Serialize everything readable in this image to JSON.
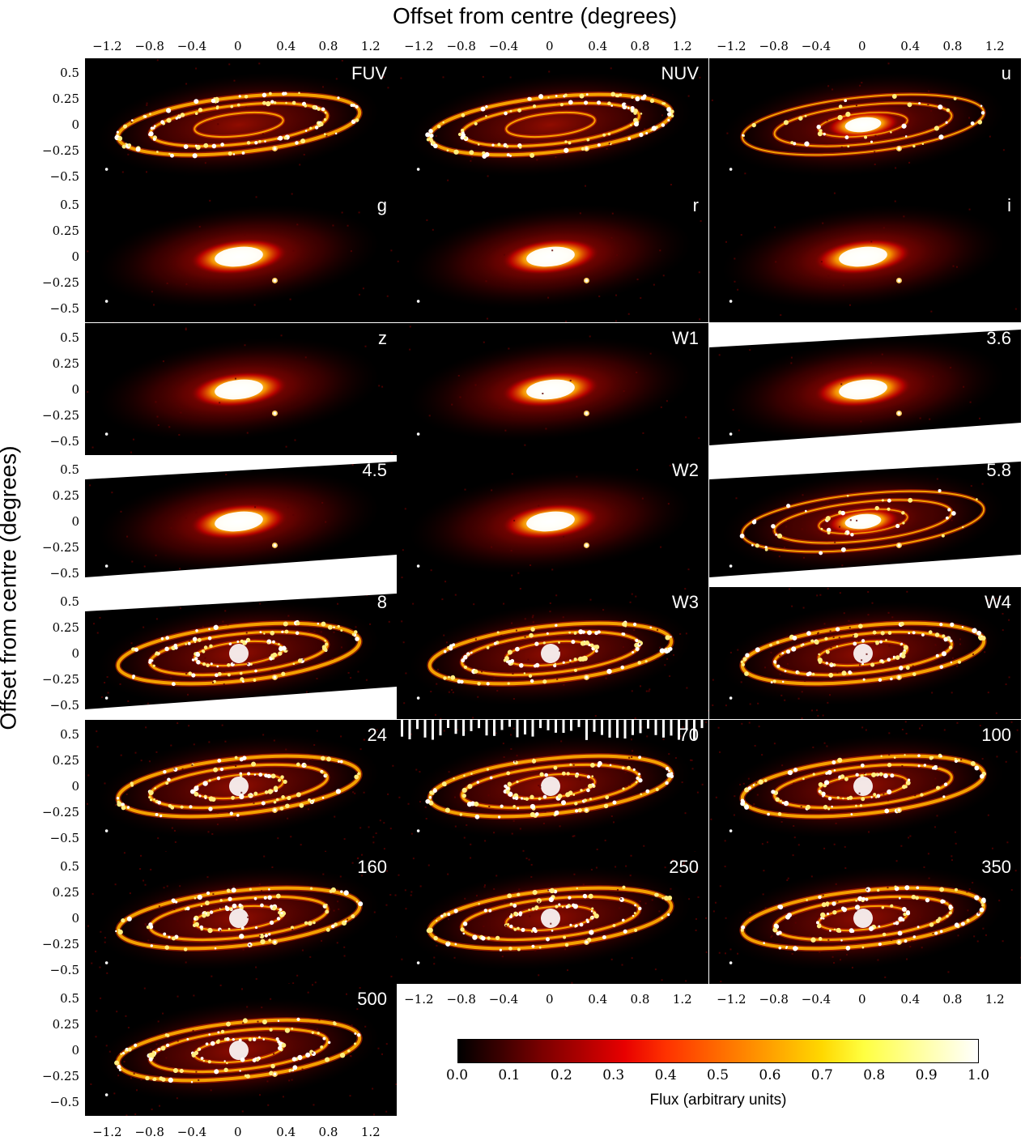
{
  "figure": {
    "x_axis_title": "Offset from centre (degrees)",
    "y_axis_title": "Offset from centre (degrees)",
    "x_tick_labels": [
      "−1.2",
      "−0.8",
      "−0.4",
      "0",
      "0.4",
      "0.8",
      "1.2"
    ],
    "y_tick_labels": [
      "0.5",
      "0.25",
      "0",
      "−0.25",
      "−0.5"
    ],
    "panels": [
      {
        "band": "FUV",
        "emission": "ring"
      },
      {
        "band": "NUV",
        "emission": "ring"
      },
      {
        "band": "u",
        "emission": "mixed"
      },
      {
        "band": "g",
        "emission": "bulge"
      },
      {
        "band": "r",
        "emission": "bulge"
      },
      {
        "band": "i",
        "emission": "bulge"
      },
      {
        "band": "z",
        "emission": "bulge"
      },
      {
        "band": "W1",
        "emission": "bulge"
      },
      {
        "band": "3.6",
        "emission": "bulge"
      },
      {
        "band": "4.5",
        "emission": "bulge"
      },
      {
        "band": "W2",
        "emission": "bulge"
      },
      {
        "band": "5.8",
        "emission": "mixed"
      },
      {
        "band": "8",
        "emission": "dust"
      },
      {
        "band": "W3",
        "emission": "dust"
      },
      {
        "band": "W4",
        "emission": "dust"
      },
      {
        "band": "24",
        "emission": "dust"
      },
      {
        "band": "70",
        "emission": "dust"
      },
      {
        "band": "100",
        "emission": "dust"
      },
      {
        "band": "160",
        "emission": "dust"
      },
      {
        "band": "250",
        "emission": "dust"
      },
      {
        "band": "350",
        "emission": "dust"
      },
      {
        "band": "500",
        "emission": "dust"
      }
    ]
  },
  "colorbar": {
    "label": "Flux (arbitrary units)",
    "ticks": [
      "0.0",
      "0.1",
      "0.2",
      "0.3",
      "0.4",
      "0.5",
      "0.6",
      "0.7",
      "0.8",
      "0.9",
      "1.0"
    ],
    "colormap": "hot"
  },
  "chart_data": {
    "type": "heatmap",
    "title": "",
    "xlabel": "Offset from centre (degrees)",
    "ylabel": "Offset from centre (degrees)",
    "xlim": [
      -1.45,
      1.45
    ],
    "ylim": [
      -0.6,
      0.6
    ],
    "xticks": [
      -1.2,
      -0.8,
      -0.4,
      0,
      0.4,
      0.8,
      1.2
    ],
    "yticks": [
      0.5,
      0.25,
      0,
      -0.25,
      -0.5
    ],
    "color_range": [
      0.0,
      1.0
    ],
    "color_label": "Flux (arbitrary units)",
    "bands": [
      "FUV",
      "NUV",
      "u",
      "g",
      "r",
      "i",
      "z",
      "W1",
      "3.6",
      "4.5",
      "W2",
      "5.8",
      "8",
      "W3",
      "W4",
      "24",
      "70",
      "100",
      "160",
      "250",
      "350",
      "500"
    ]
  }
}
